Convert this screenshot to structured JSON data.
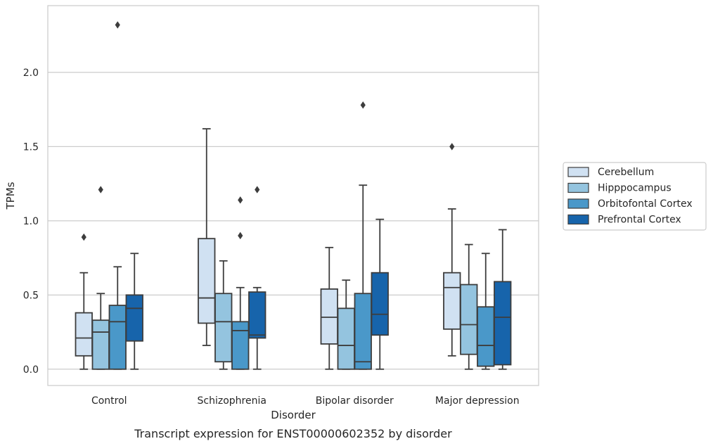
{
  "chart_data": {
    "type": "boxplot",
    "caption": "Transcript expression for ENST00000602352 by disorder",
    "xlabel": "Disorder",
    "ylabel": "TPMs",
    "ylim": [
      -0.11,
      2.45
    ],
    "yticks": [
      0.0,
      0.5,
      1.0,
      1.5,
      2.0
    ],
    "ytick_labels": [
      "0.0",
      "0.5",
      "1.0",
      "1.5",
      "2.0"
    ],
    "grid": "horizontal",
    "legend_position": "right",
    "categories": [
      "Control",
      "Schizophrenia",
      "Bipolar disorder",
      "Major depression"
    ],
    "series": [
      {
        "name": "Cerebellum",
        "color": "#d0e1f2",
        "boxes": [
          {
            "whisker_low": 0.0,
            "q1": 0.09,
            "median": 0.21,
            "q3": 0.38,
            "whisker_high": 0.65,
            "outliers": [
              0.89
            ]
          },
          {
            "whisker_low": 0.16,
            "q1": 0.31,
            "median": 0.48,
            "q3": 0.88,
            "whisker_high": 1.62,
            "outliers": []
          },
          {
            "whisker_low": 0.0,
            "q1": 0.17,
            "median": 0.35,
            "q3": 0.54,
            "whisker_high": 0.82,
            "outliers": []
          },
          {
            "whisker_low": 0.09,
            "q1": 0.27,
            "median": 0.55,
            "q3": 0.65,
            "whisker_high": 1.08,
            "outliers": [
              1.5
            ]
          }
        ]
      },
      {
        "name": "Hipppocampus",
        "color": "#94c4df",
        "boxes": [
          {
            "whisker_low": 0.0,
            "q1": 0.0,
            "median": 0.25,
            "q3": 0.33,
            "whisker_high": 0.51,
            "outliers": [
              1.21
            ]
          },
          {
            "whisker_low": 0.0,
            "q1": 0.05,
            "median": 0.32,
            "q3": 0.51,
            "whisker_high": 0.73,
            "outliers": []
          },
          {
            "whisker_low": 0.0,
            "q1": 0.0,
            "median": 0.16,
            "q3": 0.41,
            "whisker_high": 0.6,
            "outliers": []
          },
          {
            "whisker_low": 0.0,
            "q1": 0.1,
            "median": 0.3,
            "q3": 0.57,
            "whisker_high": 0.84,
            "outliers": []
          }
        ]
      },
      {
        "name": "Orbitofontal Cortex",
        "color": "#4a98c9",
        "boxes": [
          {
            "whisker_low": 0.0,
            "q1": 0.0,
            "median": 0.32,
            "q3": 0.43,
            "whisker_high": 0.69,
            "outliers": [
              2.32
            ]
          },
          {
            "whisker_low": 0.0,
            "q1": 0.0,
            "median": 0.26,
            "q3": 0.32,
            "whisker_high": 0.55,
            "outliers": [
              0.9,
              1.14
            ]
          },
          {
            "whisker_low": 0.0,
            "q1": 0.0,
            "median": 0.05,
            "q3": 0.51,
            "whisker_high": 1.24,
            "outliers": [
              1.78
            ]
          },
          {
            "whisker_low": 0.0,
            "q1": 0.02,
            "median": 0.16,
            "q3": 0.42,
            "whisker_high": 0.78,
            "outliers": []
          }
        ]
      },
      {
        "name": "Prefrontal Cortex",
        "color": "#1764ab",
        "boxes": [
          {
            "whisker_low": 0.0,
            "q1": 0.19,
            "median": 0.41,
            "q3": 0.5,
            "whisker_high": 0.78,
            "outliers": []
          },
          {
            "whisker_low": 0.0,
            "q1": 0.21,
            "median": 0.23,
            "q3": 0.52,
            "whisker_high": 0.55,
            "outliers": [
              1.21
            ]
          },
          {
            "whisker_low": 0.0,
            "q1": 0.23,
            "median": 0.37,
            "q3": 0.65,
            "whisker_high": 1.01,
            "outliers": []
          },
          {
            "whisker_low": 0.0,
            "q1": 0.03,
            "median": 0.35,
            "q3": 0.59,
            "whisker_high": 0.94,
            "outliers": []
          }
        ]
      }
    ]
  }
}
